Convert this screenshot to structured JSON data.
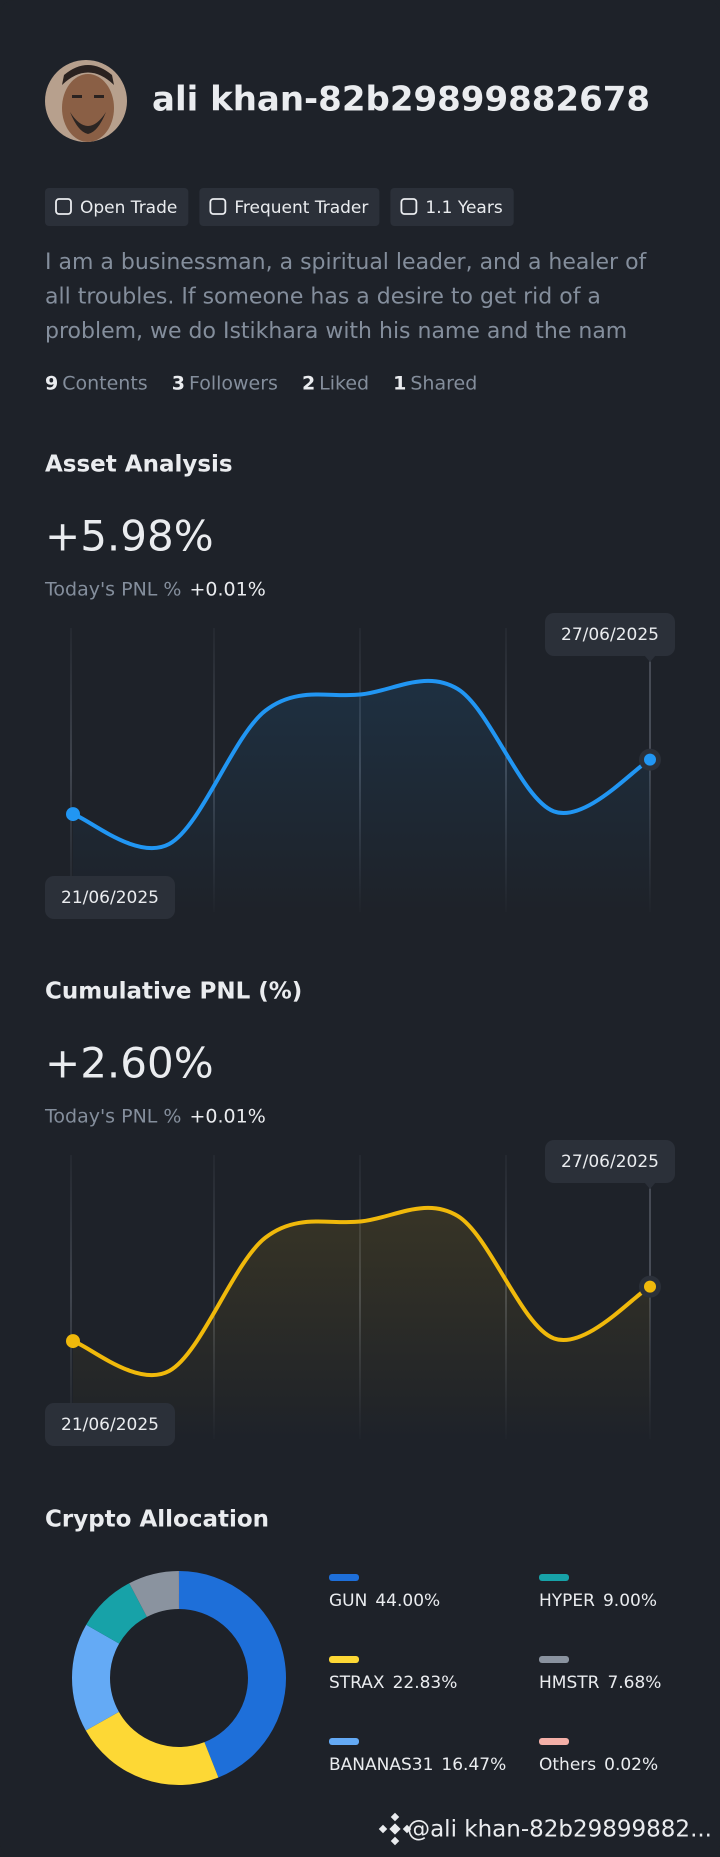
{
  "profile": {
    "name": "ali khan-82b29899882678",
    "tags": [
      "Open Trade",
      "Frequent Trader",
      "1.1 Years"
    ],
    "bio": [
      "I am a businessman, a spiritual leader, and a healer of",
      "all troubles. If someone has a desire to get rid of a",
      "problem, we do Istikhara with his name and the nam"
    ],
    "stats": [
      {
        "count": "9",
        "label": "Contents"
      },
      {
        "count": "3",
        "label": "Followers"
      },
      {
        "count": "2",
        "label": "Liked"
      },
      {
        "count": "1",
        "label": "Shared"
      }
    ]
  },
  "chart_data": [
    {
      "type": "line",
      "title": "Asset Analysis",
      "headline": "+5.98%",
      "pnl_label": "Today's PNL %",
      "pnl_value": "+0.01%",
      "categories": [
        "21/06/2025",
        null,
        null,
        null,
        null,
        null,
        "27/06/2025"
      ],
      "series": [
        {
          "color": "#2196f3",
          "values": [
            36,
            25,
            74,
            80,
            82,
            37,
            56
          ]
        }
      ],
      "ylim": [
        0,
        100
      ]
    },
    {
      "type": "line",
      "title": "Cumulative PNL (%)",
      "headline": "+2.60%",
      "pnl_label": "Today's PNL %",
      "pnl_value": "+0.01%",
      "categories": [
        "21/06/2025",
        null,
        null,
        null,
        null,
        null,
        "27/06/2025"
      ],
      "series": [
        {
          "color": "#f0b90b",
          "values": [
            36,
            25,
            74,
            80,
            82,
            37,
            56
          ]
        }
      ],
      "ylim": [
        0,
        100
      ]
    },
    {
      "type": "pie",
      "title": "Crypto Allocation",
      "categories": [
        "GUN",
        "STRAX",
        "BANANAS31",
        "HYPER",
        "HMSTR",
        "Others"
      ],
      "values": [
        44,
        22.83,
        16.47,
        9,
        7.68,
        0.02
      ],
      "value_labels": [
        "44.00%",
        "22.83%",
        "16.47%",
        "9.00%",
        "7.68%",
        "0.02%"
      ],
      "colors": [
        "#1e6fd9",
        "#fdd835",
        "#64aaf5",
        "#17a2a8",
        "#8a939f",
        "#f4b0a8"
      ]
    }
  ],
  "watermark": "@ali khan-82b29899882..."
}
